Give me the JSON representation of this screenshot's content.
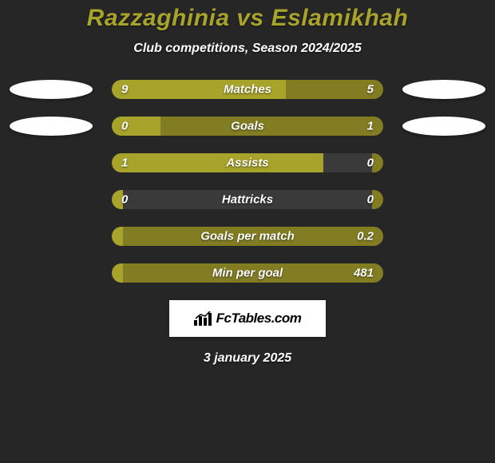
{
  "background_color": "#262626",
  "title": {
    "text": "Razzaghinia vs Eslamikhah",
    "color": "#a8a32a",
    "fontsize": 30
  },
  "subtitle": "Club competitions, Season 2024/2025",
  "left_color": "#a8a32a",
  "right_color": "#827d23",
  "track_color": "#3a3a3a",
  "text_color": "#ffffff",
  "rows": [
    {
      "label": "Matches",
      "left": "9",
      "right": "5",
      "left_pct": 64,
      "right_pct": 36,
      "show_left_badge": true,
      "show_right_badge": true
    },
    {
      "label": "Goals",
      "left": "0",
      "right": "1",
      "left_pct": 18,
      "right_pct": 82,
      "show_left_badge": true,
      "show_right_badge": true
    },
    {
      "label": "Assists",
      "left": "1",
      "right": "0",
      "left_pct": 78,
      "right_pct": 4,
      "show_left_badge": false,
      "show_right_badge": false
    },
    {
      "label": "Hattricks",
      "left": "0",
      "right": "0",
      "left_pct": 4,
      "right_pct": 4,
      "show_left_badge": false,
      "show_right_badge": false
    },
    {
      "label": "Goals per match",
      "left": "",
      "right": "0.2",
      "left_pct": 4,
      "right_pct": 96,
      "show_left_badge": false,
      "show_right_badge": false
    },
    {
      "label": "Min per goal",
      "left": "",
      "right": "481",
      "left_pct": 4,
      "right_pct": 96,
      "show_left_badge": false,
      "show_right_badge": false
    }
  ],
  "logo_text": "FcTables.com",
  "date": "3 january 2025"
}
